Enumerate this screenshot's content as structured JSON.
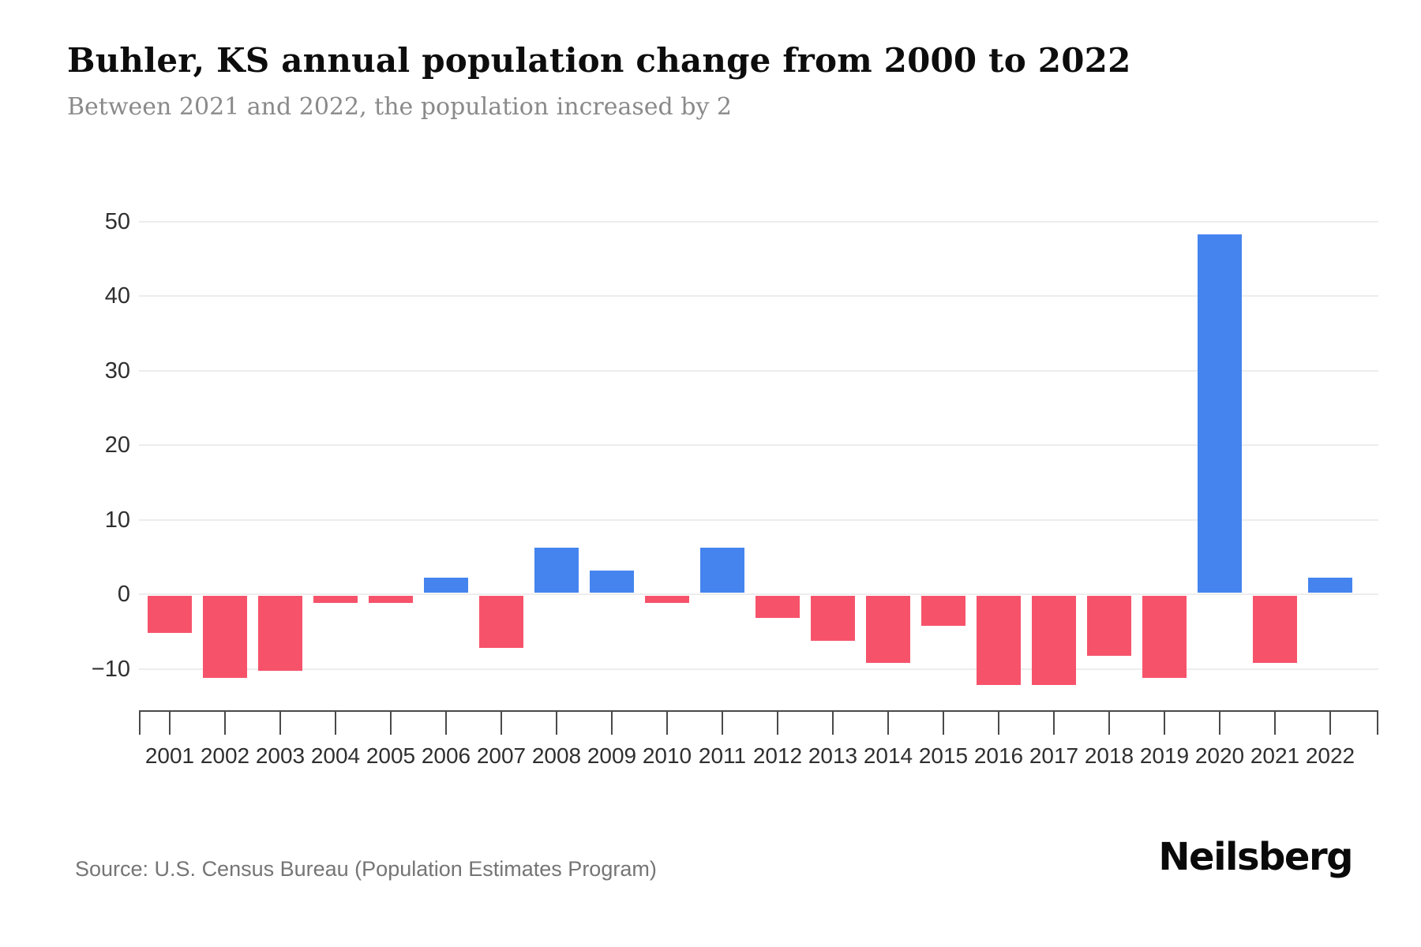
{
  "header": {
    "title": "Buhler, KS annual population change from 2000 to 2022",
    "subtitle": "Between 2021 and 2022, the population increased by 2"
  },
  "footer": {
    "source": "Source: U.S. Census Bureau (Population Estimates Program)",
    "brand": "Neilsberg"
  },
  "colors": {
    "positive_bar": "#4584EE",
    "negative_bar": "#F6536B",
    "gridline": "#ededed",
    "axis": "#4a4a4a",
    "axis_label": "#2f2f2f",
    "title_text": "#0d0d0d",
    "subtitle_text": "#8a8a8a",
    "source_text": "#757575"
  },
  "chart_data": {
    "type": "bar",
    "title": "Buhler, KS annual population change from 2000 to 2022",
    "subtitle": "Between 2021 and 2022, the population increased by 2",
    "categories": [
      "2001",
      "2002",
      "2003",
      "2004",
      "2005",
      "2006",
      "2007",
      "2008",
      "2009",
      "2010",
      "2011",
      "2012",
      "2013",
      "2014",
      "2015",
      "2016",
      "2017",
      "2018",
      "2019",
      "2020",
      "2021",
      "2022"
    ],
    "values": [
      -5,
      -11,
      -10,
      -1,
      -1,
      2,
      -7,
      6,
      3,
      -1,
      6,
      -3,
      -6,
      -9,
      -4,
      -12,
      -12,
      -8,
      -11,
      48,
      -9,
      2
    ],
    "xlabel": "",
    "ylabel": "",
    "ylim": [
      -15.5,
      52
    ],
    "y_ticks": [
      50,
      40,
      30,
      20,
      10,
      0,
      -10
    ],
    "grid": true,
    "legend": false,
    "bar_color_rule": "positive blue, negative red"
  }
}
